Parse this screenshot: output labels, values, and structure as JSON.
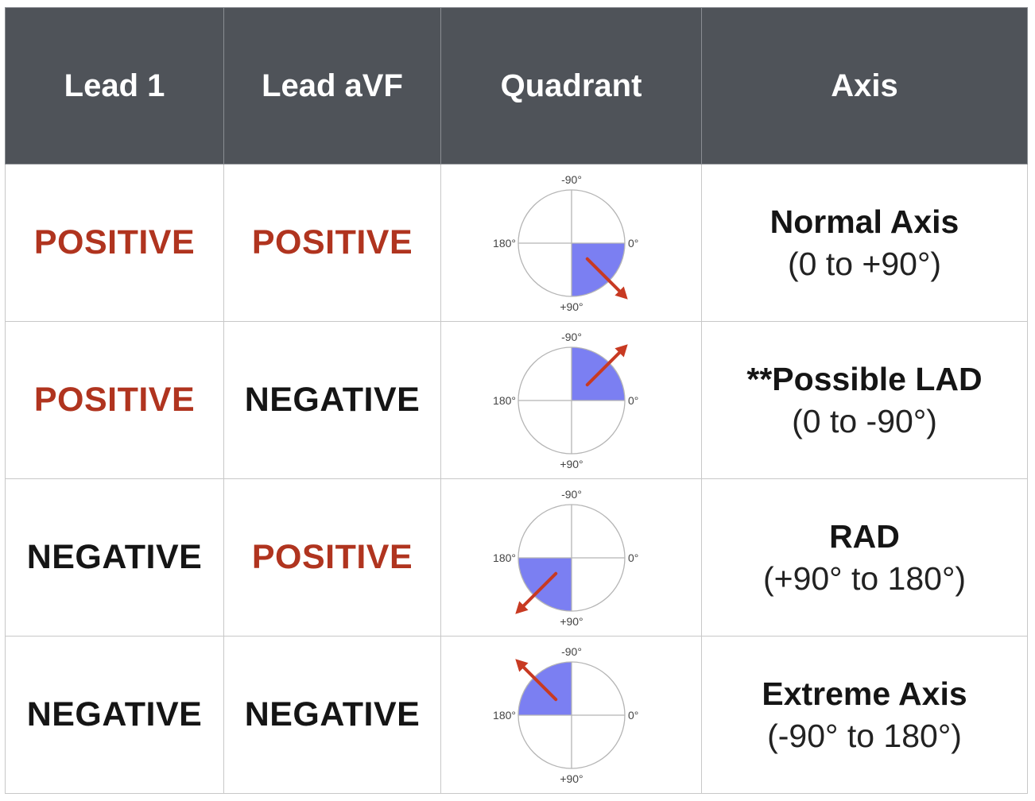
{
  "headers": {
    "lead1": "Lead 1",
    "leadavf": "Lead aVF",
    "quadrant": "Quadrant",
    "axis": "Axis"
  },
  "colors": {
    "header_bg": "#4f5359",
    "positive": "#b0341f",
    "negative": "#151515",
    "quadrant_fill": "#7b7ff2",
    "arrow": "#c83a22"
  },
  "rows": [
    {
      "lead1": "POSITIVE",
      "leadavf": "POSITIVE",
      "axis_name": "Normal Axis",
      "axis_range": "(0 to +90°)",
      "quadrant": {
        "shaded": "bottom-right",
        "arrow_direction": "down-right",
        "labels": {
          "top": "-90°",
          "left": "180°",
          "right": "0°",
          "bottom": "+90°"
        }
      }
    },
    {
      "lead1": "POSITIVE",
      "leadavf": "NEGATIVE",
      "axis_name": "**Possible LAD",
      "axis_range": "(0 to -90°)",
      "quadrant": {
        "shaded": "top-right",
        "arrow_direction": "up-right",
        "labels": {
          "top": "-90°",
          "left": "180°",
          "right": "0°",
          "bottom": "+90°"
        }
      }
    },
    {
      "lead1": "NEGATIVE",
      "leadavf": "POSITIVE",
      "axis_name": "RAD",
      "axis_range": "(+90° to 180°)",
      "quadrant": {
        "shaded": "bottom-left",
        "arrow_direction": "down-left",
        "labels": {
          "top": "-90°",
          "left": "180°",
          "right": "0°",
          "bottom": "+90°"
        }
      }
    },
    {
      "lead1": "NEGATIVE",
      "leadavf": "NEGATIVE",
      "axis_name": "Extreme Axis",
      "axis_range": "(-90° to 180°)",
      "quadrant": {
        "shaded": "top-left",
        "arrow_direction": "up-left",
        "labels": {
          "top": "-90°",
          "left": "180°",
          "right": "0°",
          "bottom": "+90°"
        }
      }
    }
  ]
}
